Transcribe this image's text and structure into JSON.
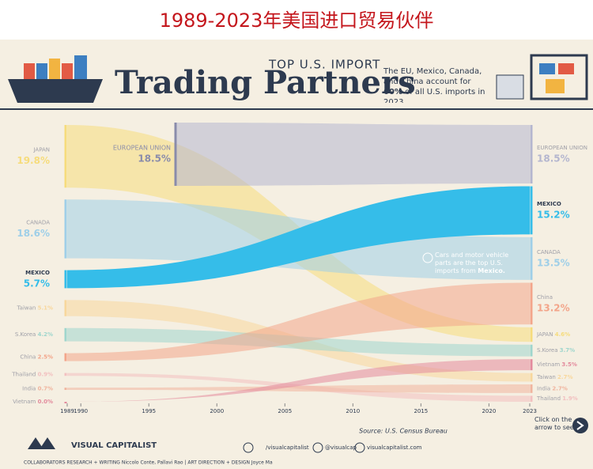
{
  "banner_title": "1989-2023年美国进口贸易伙伴",
  "header": {
    "kicker": "TOP U.S. IMPORT",
    "title": "Trading Partners",
    "subtitle_parts": [
      "The EU, Mexico, Canada, and China account for ",
      "60%",
      " of all U.S. imports in 2023."
    ]
  },
  "chart_data": {
    "type": "stream",
    "x": [
      1989,
      2023
    ],
    "xticks": [
      1989,
      1990,
      1995,
      2000,
      2005,
      2010,
      2015,
      2020,
      2023
    ],
    "xlim": [
      1989,
      2023
    ],
    "series": [
      {
        "name": "JAPAN",
        "color": "#f6dc7c",
        "values": [
          19.8,
          4.6
        ],
        "value_labels": [
          "19.8%",
          "4.6%"
        ]
      },
      {
        "name": "CANADA",
        "color": "#9fcfe8",
        "values": [
          18.6,
          13.5
        ],
        "value_labels": [
          "18.6%",
          "13.5%"
        ]
      },
      {
        "name": "EUROPEAN UNION",
        "color": "#b4b6cf",
        "values": [
          null,
          18.5
        ],
        "value_labels": [
          null,
          "18.5%"
        ]
      },
      {
        "name": "MEXICO",
        "color": "#35bde9",
        "values": [
          5.7,
          15.2
        ],
        "value_labels": [
          "5.7%",
          "15.2%"
        ]
      },
      {
        "name": "Taiwan",
        "color": "#f8d79c",
        "values": [
          5.1,
          2.7
        ],
        "value_labels": [
          "5.1%",
          "2.7%"
        ]
      },
      {
        "name": "S.Korea",
        "color": "#9fd6cd",
        "values": [
          4.2,
          3.7
        ],
        "value_labels": [
          "4.2%",
          "3.7%"
        ]
      },
      {
        "name": "China",
        "color": "#f3a58a",
        "values": [
          2.5,
          13.2
        ],
        "value_labels": [
          "2.5%",
          "13.2%"
        ]
      },
      {
        "name": "Thailand",
        "color": "#f2c0c0",
        "values": [
          0.9,
          1.9
        ],
        "value_labels": [
          "0.9%",
          "1.9%"
        ]
      },
      {
        "name": "India",
        "color": "#f0b49e",
        "values": [
          0.7,
          2.7
        ],
        "value_labels": [
          "0.7%",
          "2.7%"
        ]
      },
      {
        "name": "Vietnam",
        "color": "#e38b9d",
        "values": [
          0.0,
          3.5
        ],
        "value_labels": [
          "0.0%",
          "3.5%"
        ]
      }
    ],
    "annotations": [
      {
        "label": "EUROPEAN UNION",
        "value": 18.5,
        "value_label": "18.5%"
      },
      {
        "text_parts": [
          "Cars and motor vehicle parts are the top U.S. imports from ",
          "Mexico."
        ]
      }
    ],
    "source": "Source: U.S. Census Bureau",
    "cta": "Click on the arrow to see"
  },
  "footer": {
    "brand": "VISUAL CAPITALIST",
    "social": [
      "/visualcapitalist",
      "@visualcap",
      "visualcapitalist.com"
    ],
    "credits": "COLLABORATORS   RESEARCH + WRITING Niccolo Conte, Pallavi Rao  |  ART DIRECTION + DESIGN Joyce Ma"
  }
}
